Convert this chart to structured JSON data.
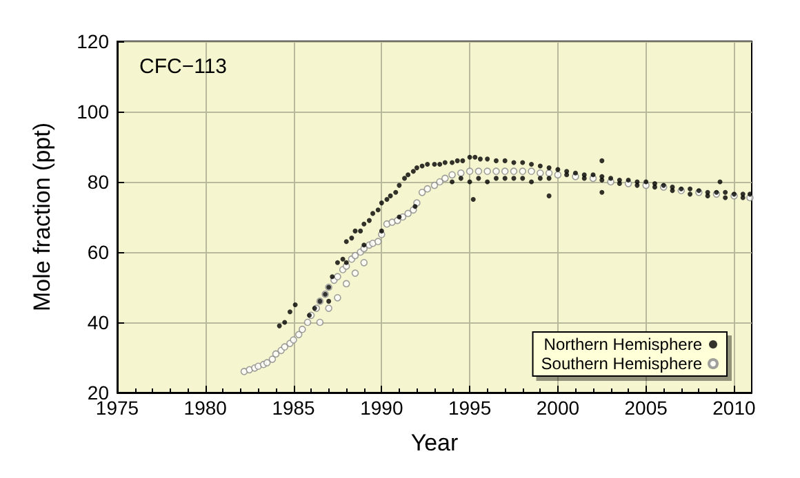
{
  "chart_data": {
    "type": "scatter",
    "title": "CFC−113",
    "xlabel": "Year",
    "ylabel": "Mole fraction (ppt)",
    "xlim": [
      1975,
      2011
    ],
    "xticks": [
      1975,
      1980,
      1985,
      1990,
      1995,
      2000,
      2005,
      2010
    ],
    "ylim": [
      20,
      120
    ],
    "yticks": [
      20,
      40,
      60,
      80,
      100,
      120
    ],
    "grid": true,
    "legend": "bottom right",
    "marker": "circle",
    "series": [
      {
        "name": "Northern Hemisphere",
        "color": "#000000",
        "x": [
          1984.2,
          1984.5,
          1984.8,
          1985.1,
          1985.9,
          1986.2,
          1986.5,
          1986.8,
          1987.0,
          1987.2,
          1987.5,
          1987.8,
          1988.0,
          1988.3,
          1988.5,
          1988.8,
          1989.0,
          1989.3,
          1989.5,
          1989.8,
          1990.0,
          1990.3,
          1990.5,
          1990.8,
          1991.0,
          1991.3,
          1991.5,
          1991.8,
          1992.0,
          1992.3,
          1992.6,
          1993.0,
          1993.3,
          1993.6,
          1994.0,
          1994.3,
          1994.6,
          1995.0,
          1995.3,
          1995.6,
          1996.0,
          1996.5,
          1997.0,
          1997.5,
          1998.0,
          1998.5,
          1999.0,
          1999.5,
          2000.0,
          2000.5,
          2001.0,
          2001.5,
          2002.0,
          2002.5,
          2003.0,
          2003.5,
          2004.0,
          2004.5,
          2005.0,
          2005.5,
          2006.0,
          2006.5,
          2007.0,
          2007.5,
          2008.0,
          2008.5,
          2009.0,
          2009.5,
          2010.0,
          2010.5,
          2010.9,
          1994.0,
          1994.5,
          1995.0,
          1995.5,
          1996.0,
          1996.5,
          1997.0,
          1997.5,
          1998.0,
          1998.5,
          1999.0,
          1999.5,
          2000.5,
          2001.5,
          2002.5,
          2003.5,
          2004.5,
          2005.5,
          2006.5,
          2007.5,
          2008.5,
          2009.5,
          2010.5,
          1995.2,
          1999.5,
          2002.5,
          2002.5,
          2009.2,
          1987.0,
          1988.0,
          1989.0,
          1990.0,
          1991.0,
          1991.9
        ],
        "values": [
          39,
          40,
          43,
          45,
          42,
          44,
          46,
          48,
          50,
          53,
          57,
          58,
          63,
          64,
          66,
          66,
          68,
          69,
          71,
          72,
          74,
          75,
          76,
          77,
          79,
          81,
          82,
          83,
          84,
          84.5,
          85,
          85,
          85,
          85.5,
          85.5,
          86,
          86,
          87,
          87,
          86.5,
          86.5,
          86,
          86,
          85.5,
          85.5,
          85,
          84.5,
          84,
          83.5,
          83,
          82.5,
          82,
          82,
          81.5,
          81,
          80.5,
          80.5,
          80,
          80,
          79.5,
          79,
          78.5,
          78,
          78,
          77.5,
          77,
          77,
          77,
          76.5,
          76.5,
          76.5,
          80,
          81,
          80,
          81,
          80,
          81,
          81,
          81,
          81,
          80,
          81,
          81,
          82,
          81,
          80.5,
          79.5,
          79,
          78.5,
          77.5,
          76.5,
          76,
          75.5,
          75.5,
          75,
          76,
          86,
          77,
          80,
          46,
          57,
          62,
          66,
          70,
          73
        ]
      },
      {
        "name": "Southern Hemisphere",
        "color": "#888888",
        "x": [
          1982.2,
          1982.5,
          1982.8,
          1983.0,
          1983.3,
          1983.5,
          1983.8,
          1984.0,
          1984.3,
          1984.5,
          1984.8,
          1985.0,
          1985.3,
          1985.5,
          1985.8,
          1986.0,
          1986.3,
          1986.5,
          1986.8,
          1987.0,
          1987.3,
          1987.5,
          1987.8,
          1988.0,
          1988.3,
          1988.5,
          1988.8,
          1989.0,
          1989.3,
          1989.5,
          1989.8,
          1990.0,
          1990.3,
          1990.6,
          1990.9,
          1991.2,
          1991.5,
          1991.8,
          1992.0,
          1992.3,
          1992.6,
          1993.0,
          1993.3,
          1993.6,
          1994.0,
          1994.5,
          1995.0,
          1995.5,
          1996.0,
          1996.5,
          1997.0,
          1997.5,
          1998.0,
          1998.5,
          1999.0,
          1999.5,
          2000.0,
          2001.0,
          2002.0,
          2003.0,
          2004.0,
          2005.0,
          2006.0,
          2007.0,
          2008.0,
          2009.0,
          2010.0,
          2010.9,
          1986.5,
          1987.0,
          1987.5,
          1988.0,
          1988.5,
          1989.0
        ],
        "values": [
          26,
          26.5,
          27,
          27.5,
          28,
          28.5,
          29.5,
          31,
          32,
          33,
          34,
          35,
          36.5,
          38,
          40,
          42,
          44,
          46,
          48,
          50,
          52,
          53,
          55,
          56,
          58,
          59,
          60,
          61,
          62,
          62.5,
          63,
          65,
          68,
          68.5,
          69,
          70,
          71,
          72,
          74,
          77,
          78,
          79,
          80,
          81,
          82,
          82.5,
          83,
          83,
          83,
          83,
          83,
          83,
          83,
          83,
          82.5,
          82.5,
          82,
          81.5,
          81,
          80,
          79.5,
          79,
          78.5,
          77.5,
          77,
          76.5,
          76,
          75.5,
          40,
          44,
          47,
          51,
          54,
          57
        ]
      }
    ]
  }
}
